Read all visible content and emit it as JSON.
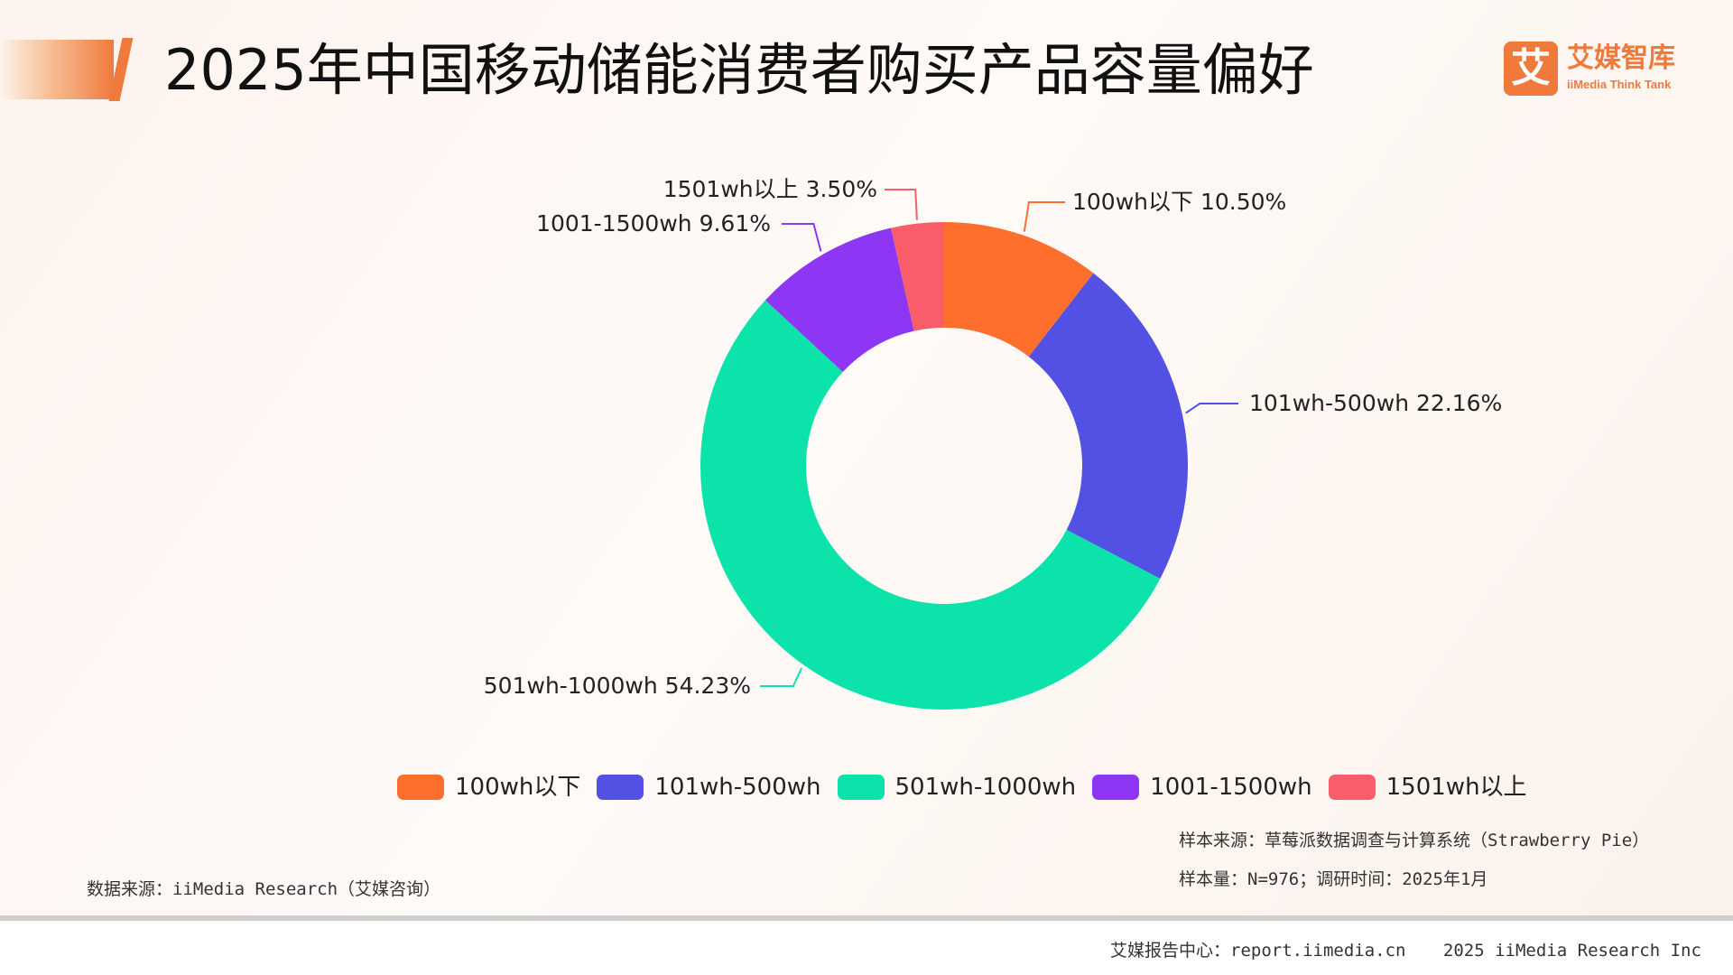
{
  "header": {
    "title": "2025年中国移动储能消费者购买产品容量偏好"
  },
  "logo": {
    "mark": "艾",
    "cn": "艾媒智库",
    "en": "iiMedia Think Tank"
  },
  "chart_data": {
    "type": "pie",
    "subtype": "donut",
    "title": "2025年中国移动储能消费者购买产品容量偏好",
    "categories": [
      "100wh以下",
      "101wh-500wh",
      "501wh-1000wh",
      "1001-1500wh",
      "1501wh以上"
    ],
    "values": [
      10.5,
      22.16,
      54.23,
      9.61,
      3.5
    ],
    "value_labels": [
      "10.50%",
      "22.16%",
      "54.23%",
      "9.61%",
      "3.50%"
    ],
    "colors": [
      "#fe6f2e",
      "#5350e4",
      "#0be3ab",
      "#8d37f4",
      "#f95d69"
    ],
    "legend_position": "bottom"
  },
  "notes": {
    "sample_source": "样本来源：草莓派数据调查与计算系统（Strawberry Pie）",
    "sample_size": "样本量：N=976；调研时间：2025年1月"
  },
  "source": {
    "text": "数据来源：iiMedia Research（艾媒咨询）"
  },
  "footer": {
    "center": "艾媒报告中心：report.iimedia.cn",
    "copyright": "2025 iiMedia Research Inc"
  }
}
